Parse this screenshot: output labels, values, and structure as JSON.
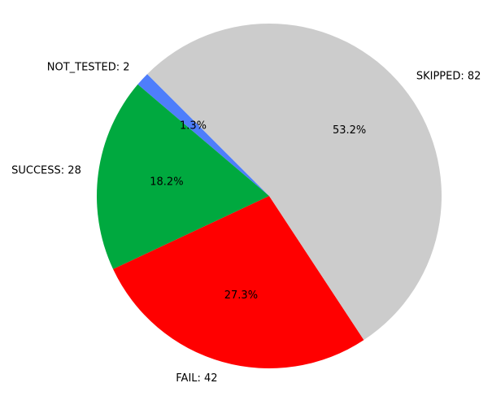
{
  "chart_data": {
    "type": "pie",
    "slices": [
      {
        "label": "NOT_TESTED: 2",
        "value": 2,
        "percent_label": "1.3%",
        "color": "#4e7efb"
      },
      {
        "label": "SUCCESS: 28",
        "value": 28,
        "percent_label": "18.2%",
        "color": "#00a93f"
      },
      {
        "label": "FAIL: 42",
        "value": 42,
        "percent_label": "27.3%",
        "color": "#ff0000"
      },
      {
        "label": "SKIPPED: 82",
        "value": 82,
        "percent_label": "53.2%",
        "color": "#cccccc"
      }
    ],
    "start_angle_deg": 135,
    "direction": "counterclockwise",
    "legend": "none"
  }
}
